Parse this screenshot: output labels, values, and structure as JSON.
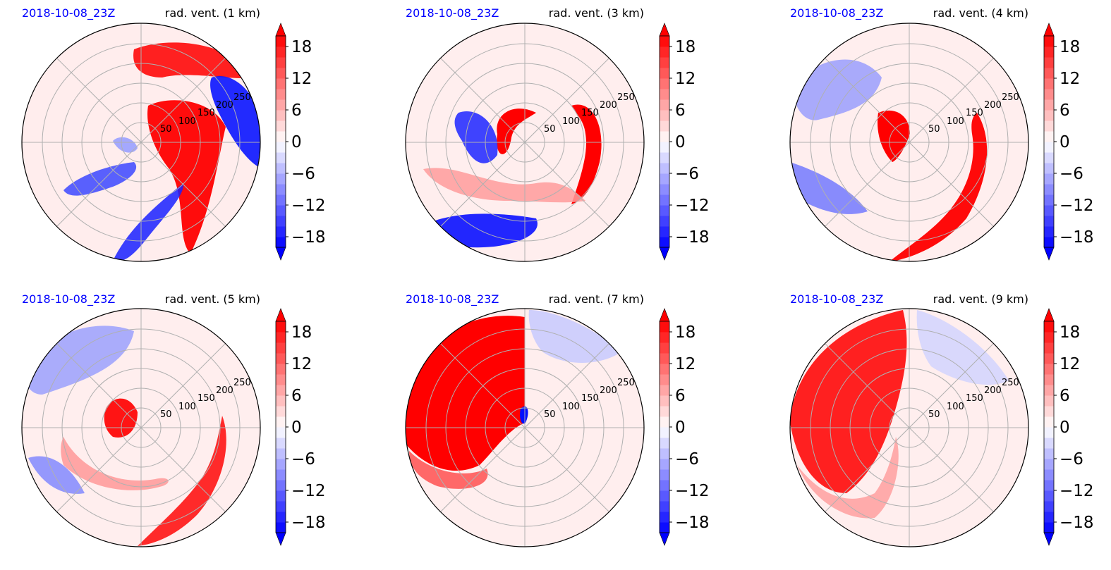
{
  "figure": {
    "colors": {
      "date": "#0000ff",
      "title": "#000000",
      "grid": "#b0b0b0"
    },
    "colorbar": {
      "ticks": [
        "18",
        "12",
        "6",
        "0",
        "−6",
        "−12",
        "−18"
      ],
      "tick_values": [
        18,
        12,
        6,
        0,
        -6,
        -12,
        -18
      ],
      "range": [
        -20,
        20
      ],
      "levels": 20,
      "extend": "both",
      "cmap": "bwr"
    },
    "ring_labels": [
      "50",
      "100",
      "150",
      "200",
      "250"
    ],
    "panels": [
      {
        "date": "2018-10-08_23Z",
        "title": "rad. vent. (1 km)"
      },
      {
        "date": "2018-10-08_23Z",
        "title": "rad. vent. (3 km)"
      },
      {
        "date": "2018-10-08_23Z",
        "title": "rad. vent. (4 km)"
      },
      {
        "date": "2018-10-08_23Z",
        "title": "rad. vent. (5 km)"
      },
      {
        "date": "2018-10-08_23Z",
        "title": "rad. vent. (7 km)"
      },
      {
        "date": "2018-10-08_23Z",
        "title": "rad. vent. (9 km)"
      }
    ]
  },
  "chart_data": [
    {
      "type": "heatmap",
      "projection": "polar",
      "title": "rad. vent. (1 km)",
      "date": "2018-10-08_23Z",
      "radial_ticks": [
        50,
        100,
        150,
        200,
        250
      ],
      "color_range": [
        -20,
        20
      ],
      "colorbar_ticks": [
        -18,
        -12,
        -6,
        0,
        6,
        12,
        18
      ],
      "features": [
        {
          "kind": "band",
          "sign": "positive",
          "value": 16,
          "r": [
            110,
            250
          ],
          "theta_deg": [
            40,
            110
          ]
        },
        {
          "kind": "band",
          "sign": "positive",
          "value": 18,
          "r": [
            20,
            160
          ],
          "theta_deg": [
            -80,
            70
          ]
        },
        {
          "kind": "band",
          "sign": "negative",
          "value": -18,
          "r": [
            120,
            250
          ],
          "theta_deg": [
            -10,
            60
          ]
        },
        {
          "kind": "band",
          "sign": "negative",
          "value": -14,
          "r": [
            70,
            260
          ],
          "theta_deg": [
            -130,
            -100
          ]
        },
        {
          "kind": "band",
          "sign": "negative",
          "value": -8,
          "r": [
            30,
            90
          ],
          "theta_deg": [
            160,
            250
          ]
        }
      ]
    },
    {
      "type": "heatmap",
      "projection": "polar",
      "title": "rad. vent. (3 km)",
      "date": "2018-10-08_23Z",
      "radial_ticks": [
        50,
        100,
        150,
        200,
        250
      ],
      "color_range": [
        -20,
        20
      ],
      "colorbar_ticks": [
        -18,
        -12,
        -6,
        0,
        6,
        12,
        18
      ],
      "features": [
        {
          "kind": "band",
          "sign": "positive",
          "value": 18,
          "r": [
            30,
            60
          ],
          "theta_deg": [
            0,
            200
          ]
        },
        {
          "kind": "band",
          "sign": "positive",
          "value": 18,
          "r": [
            155,
            190
          ],
          "theta_deg": [
            -70,
            50
          ]
        },
        {
          "kind": "band",
          "sign": "negative",
          "value": -18,
          "r": [
            60,
            130
          ],
          "theta_deg": [
            120,
            180
          ]
        },
        {
          "kind": "band",
          "sign": "negative",
          "value": -18,
          "r": [
            170,
            250
          ],
          "theta_deg": [
            200,
            250
          ]
        },
        {
          "kind": "band",
          "sign": "positive",
          "value": 6,
          "r": [
            80,
            220
          ],
          "theta_deg": [
            190,
            230
          ]
        }
      ]
    },
    {
      "type": "heatmap",
      "projection": "polar",
      "title": "rad. vent. (4 km)",
      "date": "2018-10-08_23Z",
      "radial_ticks": [
        50,
        100,
        150,
        200,
        250
      ],
      "color_range": [
        -20,
        20
      ],
      "colorbar_ticks": [
        -18,
        -12,
        -6,
        0,
        6,
        12,
        18
      ],
      "features": [
        {
          "kind": "band",
          "sign": "positive",
          "value": 18,
          "r": [
            15,
            55
          ],
          "theta_deg": [
            140,
            330
          ]
        },
        {
          "kind": "band",
          "sign": "positive",
          "value": 16,
          "r": [
            150,
            250
          ],
          "theta_deg": [
            -110,
            30
          ]
        },
        {
          "kind": "band",
          "sign": "negative",
          "value": -6,
          "r": [
            120,
            250
          ],
          "theta_deg": [
            110,
            230
          ]
        }
      ]
    },
    {
      "type": "heatmap",
      "projection": "polar",
      "title": "rad. vent. (5 km)",
      "date": "2018-10-08_23Z",
      "radial_ticks": [
        50,
        100,
        150,
        200,
        250
      ],
      "color_range": [
        -20,
        20
      ],
      "colorbar_ticks": [
        -18,
        -12,
        -6,
        0,
        6,
        12,
        18
      ],
      "features": [
        {
          "kind": "band",
          "sign": "positive",
          "value": 16,
          "r": [
            15,
            50
          ],
          "theta_deg": [
            140,
            320
          ]
        },
        {
          "kind": "band",
          "sign": "positive",
          "value": 14,
          "r": [
            150,
            250
          ],
          "theta_deg": [
            -100,
            10
          ]
        },
        {
          "kind": "band",
          "sign": "positive",
          "value": 6,
          "r": [
            80,
            150
          ],
          "theta_deg": [
            190,
            290
          ]
        },
        {
          "kind": "band",
          "sign": "negative",
          "value": -8,
          "r": [
            120,
            250
          ],
          "theta_deg": [
            100,
            230
          ]
        }
      ]
    },
    {
      "type": "heatmap",
      "projection": "polar",
      "title": "rad. vent. (7 km)",
      "date": "2018-10-08_23Z",
      "radial_ticks": [
        50,
        100,
        150,
        200,
        250
      ],
      "color_range": [
        -20,
        20
      ],
      "colorbar_ticks": [
        -18,
        -12,
        -6,
        0,
        6,
        12,
        18
      ],
      "features": [
        {
          "kind": "band",
          "sign": "positive",
          "value": 18,
          "r": [
            0,
            250
          ],
          "theta_deg": [
            90,
            200
          ]
        },
        {
          "kind": "band",
          "sign": "negative",
          "value": -10,
          "r": [
            0,
            40
          ],
          "theta_deg": [
            200,
            260
          ]
        },
        {
          "kind": "band",
          "sign": "negative",
          "value": -4,
          "r": [
            100,
            250
          ],
          "theta_deg": [
            30,
            90
          ]
        }
      ]
    },
    {
      "type": "heatmap",
      "projection": "polar",
      "title": "rad. vent. (9 km)",
      "date": "2018-10-08_23Z",
      "radial_ticks": [
        50,
        100,
        150,
        200,
        250
      ],
      "color_range": [
        -20,
        20
      ],
      "colorbar_ticks": [
        -18,
        -12,
        -6,
        0,
        6,
        12,
        18
      ],
      "features": [
        {
          "kind": "band",
          "sign": "positive",
          "value": 16,
          "r": [
            20,
            250
          ],
          "theta_deg": [
            90,
            220
          ]
        },
        {
          "kind": "band",
          "sign": "negative",
          "value": -4,
          "r": [
            30,
            200
          ],
          "theta_deg": [
            0,
            80
          ]
        }
      ]
    }
  ]
}
